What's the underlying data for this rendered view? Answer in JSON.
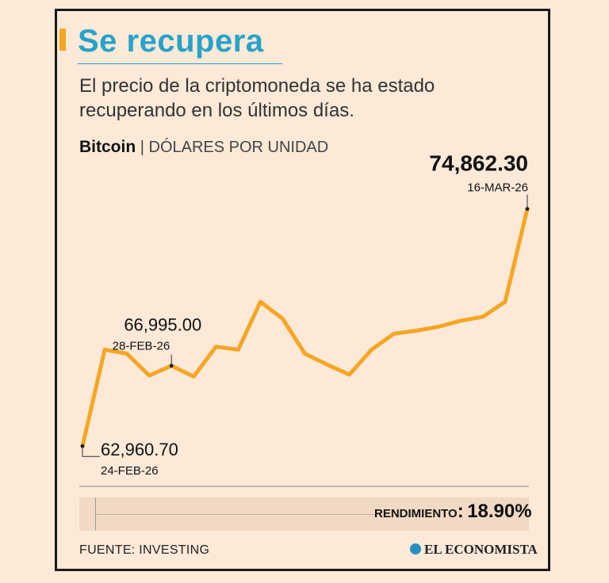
{
  "header": {
    "title": "Se recupera",
    "subtitle": "El precio de la criptomoneda se ha estado recuperando en los últimos días."
  },
  "series_label": {
    "name": "Bitcoin",
    "separator": "|",
    "unit": "DÓLARES POR UNIDAD"
  },
  "chart_data": {
    "type": "line",
    "title": "Se recupera",
    "ylabel": "Dólares por unidad",
    "xlabel": "",
    "ylim": [
      61500,
      76200
    ],
    "values": [
      62960.7,
      67800,
      67600,
      66500,
      66995.0,
      66450,
      67950,
      67800,
      70200,
      69350,
      67600,
      67050,
      66550,
      67800,
      68600,
      68750,
      68950,
      69250,
      69450,
      70200,
      74862.3
    ],
    "annotations": [
      {
        "value": "62,960.70",
        "date": "24-FEB-26",
        "index": 0
      },
      {
        "value": "66,995.00",
        "date": "28-FEB-26",
        "index": 4
      },
      {
        "value": "74,862.30",
        "date": "16-MAR-26",
        "index": 20
      }
    ],
    "colors": {
      "line": "#f5a623",
      "marker": "#1a1a1a",
      "text": "#111111"
    }
  },
  "rendimiento": {
    "label": "RENDIMIENTO",
    "colon": ":",
    "value": "18.90%"
  },
  "footer": {
    "source": "FUENTE: INVESTING",
    "brand": "EL ECONOMISTA"
  }
}
